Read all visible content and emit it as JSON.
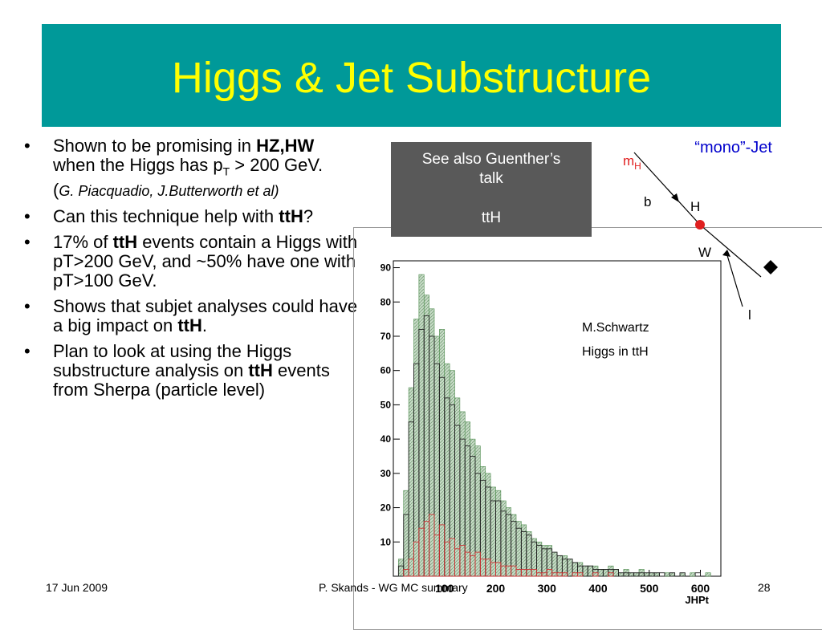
{
  "title": "Higgs & Jet Substructure",
  "bullets": [
    {
      "runs": [
        {
          "text": "Shown to be promising in "
        },
        {
          "text": "HZ,HW",
          "style": "b"
        },
        {
          "text": " when the Higgs has p"
        },
        {
          "text": "T",
          "style": "sub"
        },
        {
          "text": " > 200 GeV. ("
        },
        {
          "text": "G. Piacquadio, J.Butterworth et al)",
          "style": "i"
        }
      ]
    },
    {
      "runs": [
        {
          "text": "Can this technique help with "
        },
        {
          "text": "ttH",
          "style": "b"
        },
        {
          "text": "?"
        }
      ]
    },
    {
      "runs": [
        {
          "text": "17% of "
        },
        {
          "text": "ttH",
          "style": "b"
        },
        {
          "text": " events contain a Higgs with pT>200 GeV, and ~50% have one with pT>100 GeV."
        }
      ]
    },
    {
      "runs": [
        {
          "text": "Shows that subjet analyses could have a big impact on "
        },
        {
          "text": "ttH",
          "style": "b"
        },
        {
          "text": "."
        }
      ]
    },
    {
      "runs": [
        {
          "text": "Plan to look at using the Higgs substructure analysis on "
        },
        {
          "text": "ttH",
          "style": "b"
        },
        {
          "text": " events from Sherpa (particle level)"
        }
      ]
    }
  ],
  "callout": {
    "line1": "See also Guenther’s talk",
    "line2": "ttH"
  },
  "diagram": {
    "jet": "“mono”-Jet",
    "mass": "m",
    "mass_sub": "H",
    "b": "b",
    "h": "H",
    "w": "W",
    "l": "l"
  },
  "footer": {
    "date": "17 Jun 2009",
    "center": "P. Skands - WG MC summary",
    "page": "28"
  },
  "chart_data": {
    "type": "histogram",
    "xlabel": "JHPt",
    "annotations": [
      "M.Schwartz",
      "Higgs in ttH"
    ],
    "bins": [
      0,
      10,
      20,
      30,
      40,
      50,
      60,
      70,
      80,
      90,
      100,
      110,
      120,
      130,
      140,
      150,
      160,
      170,
      180,
      190,
      200,
      210,
      220,
      230,
      240,
      250,
      260,
      270,
      280,
      290,
      300,
      310,
      320,
      330,
      340,
      350,
      360,
      370,
      380,
      390,
      400,
      410,
      420,
      430,
      440,
      450,
      460,
      470,
      480,
      490,
      500,
      510,
      520,
      530,
      540,
      550,
      560,
      570,
      580,
      590,
      600,
      610,
      620,
      630,
      640
    ],
    "series": [
      {
        "color": "#4a8a4a",
        "values": [
          0,
          5,
          25,
          55,
          75,
          88,
          82,
          78,
          70,
          72,
          62,
          60,
          52,
          48,
          45,
          40,
          38,
          32,
          30,
          26,
          25,
          22,
          20,
          18,
          16,
          15,
          13,
          11,
          10,
          9,
          9,
          7,
          6,
          6,
          5,
          4,
          4,
          3,
          3,
          3,
          2,
          2,
          3,
          2,
          1,
          2,
          1,
          1,
          2,
          1,
          1,
          1,
          0,
          1,
          1,
          0,
          1,
          0,
          1,
          0,
          0,
          1,
          0,
          0
        ]
      },
      {
        "color": "#222222",
        "values": [
          0,
          3,
          18,
          45,
          62,
          72,
          76,
          70,
          62,
          58,
          52,
          50,
          44,
          40,
          38,
          35,
          30,
          28,
          26,
          22,
          22,
          19,
          18,
          16,
          14,
          13,
          12,
          10,
          9,
          8,
          8,
          7,
          6,
          5,
          5,
          4,
          3,
          3,
          3,
          2,
          2,
          2,
          2,
          2,
          1,
          1,
          1,
          1,
          1,
          1,
          1,
          1,
          1,
          0,
          1,
          0,
          1,
          0,
          0,
          1,
          0,
          0,
          0,
          0
        ]
      },
      {
        "color": "#cc3333",
        "values": [
          0,
          0,
          2,
          5,
          10,
          14,
          16,
          18,
          12,
          15,
          10,
          11,
          8,
          9,
          7,
          6,
          7,
          5,
          5,
          4,
          4,
          3,
          3,
          3,
          2,
          2,
          2,
          2,
          1,
          1,
          2,
          1,
          1,
          1,
          0,
          1,
          1,
          0,
          0,
          1,
          0,
          0,
          1,
          0,
          0,
          0,
          0,
          0,
          0,
          0,
          0,
          0,
          0,
          0,
          0,
          0,
          0,
          0,
          0,
          0,
          0,
          0,
          0,
          0
        ]
      }
    ],
    "xlim": [
      0,
      640
    ],
    "ylim": [
      0,
      92
    ],
    "xticks": [
      100,
      200,
      300,
      400,
      500,
      600
    ],
    "yticks": [
      10,
      20,
      30,
      40,
      50,
      60,
      70,
      80,
      90
    ],
    "grid": false
  }
}
